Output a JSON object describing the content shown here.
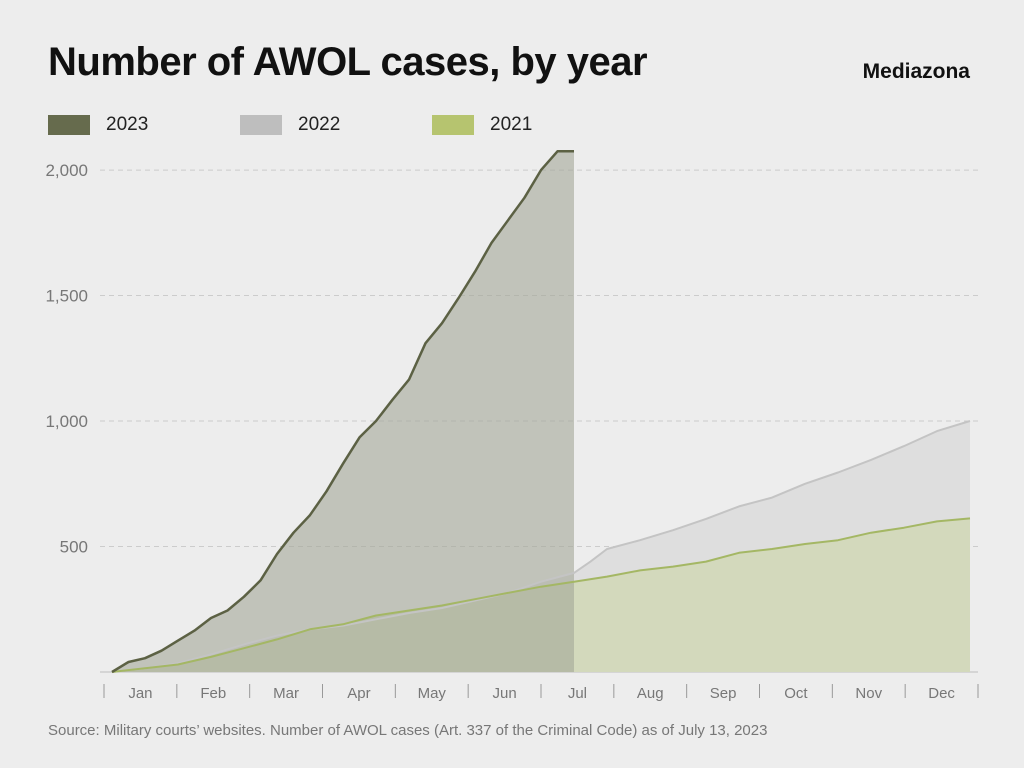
{
  "title": "Number of AWOL cases, by year",
  "brand": "Mediazona",
  "source": "Source: Military courts’ websites. Number of AWOL cases (Art. 337 of the Criminal Code) as of July 13, 2023",
  "colors": {
    "background": "#ededed",
    "series_2023_line": "#5c6144",
    "series_2023_swatch": "#666b4d",
    "series_2023_fill": "#a4a797",
    "series_2022_line": "#c4c4c4",
    "series_2022_swatch": "#bebebe",
    "series_2022_fill": "#dedede",
    "series_2021_line": "#a4b764",
    "series_2021_swatch": "#b6c46f",
    "series_2021_fill": "#d3d9bc",
    "grid": "#cccccc",
    "tick_text": "#777777"
  },
  "legend": [
    {
      "label": "2023",
      "color_key": "series_2023_swatch"
    },
    {
      "label": "2022",
      "color_key": "series_2022_swatch"
    },
    {
      "label": "2021",
      "color_key": "series_2021_swatch"
    }
  ],
  "chart_data": {
    "type": "area",
    "title": "Number of AWOL cases, by year",
    "xlabel": "",
    "ylabel": "",
    "xlim": [
      0,
      52
    ],
    "ylim": [
      0,
      2080
    ],
    "grid": true,
    "grid_style": "dashed horizontal",
    "legend_position": "top-left",
    "yticks": [
      {
        "value": 500,
        "label": "500"
      },
      {
        "value": 1000,
        "label": "1,000"
      },
      {
        "value": 1500,
        "label": "1,500"
      },
      {
        "value": 2000,
        "label": "2,000"
      }
    ],
    "months": [
      "Jan",
      "Feb",
      "Mar",
      "Apr",
      "May",
      "Jun",
      "Jul",
      "Aug",
      "Sep",
      "Oct",
      "Nov",
      "Dec"
    ],
    "x_unit": "week of year",
    "series": [
      {
        "name": "2021",
        "color_key": "series_2021_line",
        "fill_key": "series_2021_fill",
        "x": [
          0,
          2,
          4,
          6,
          8,
          10,
          12,
          14,
          16,
          18,
          20,
          22,
          24,
          26,
          28,
          30,
          32,
          34,
          36,
          38,
          40,
          42,
          44,
          46,
          48,
          50,
          52
        ],
        "values": [
          0,
          15,
          30,
          60,
          95,
          130,
          170,
          190,
          225,
          245,
          265,
          290,
          315,
          340,
          360,
          380,
          405,
          420,
          440,
          475,
          490,
          510,
          525,
          555,
          575,
          600,
          612
        ]
      },
      {
        "name": "2022",
        "color_key": "series_2022_line",
        "fill_key": "series_2022_fill",
        "x": [
          0,
          2,
          4,
          6,
          8,
          10,
          12,
          14,
          16,
          18,
          20,
          22,
          24,
          26,
          28,
          29,
          30,
          32,
          34,
          36,
          38,
          40,
          42,
          44,
          46,
          48,
          50,
          52
        ],
        "values": [
          0,
          15,
          35,
          70,
          110,
          145,
          170,
          185,
          210,
          235,
          255,
          285,
          315,
          360,
          395,
          440,
          490,
          525,
          565,
          610,
          660,
          695,
          750,
          795,
          845,
          900,
          960,
          1000
        ]
      },
      {
        "name": "2023",
        "color_key": "series_2023_line",
        "fill_key": "series_2023_fill",
        "x": [
          0,
          1,
          2,
          3,
          4,
          5,
          6,
          7,
          8,
          9,
          10,
          11,
          12,
          13,
          14,
          15,
          16,
          17,
          18,
          19,
          20,
          21,
          22,
          23,
          24,
          25,
          26,
          27,
          28
        ],
        "values": [
          0,
          40,
          55,
          85,
          125,
          165,
          215,
          245,
          300,
          365,
          470,
          555,
          625,
          720,
          830,
          935,
          1000,
          1085,
          1165,
          1310,
          1390,
          1490,
          1595,
          1710,
          1800,
          1890,
          2000,
          2075,
          2075
        ]
      }
    ]
  }
}
